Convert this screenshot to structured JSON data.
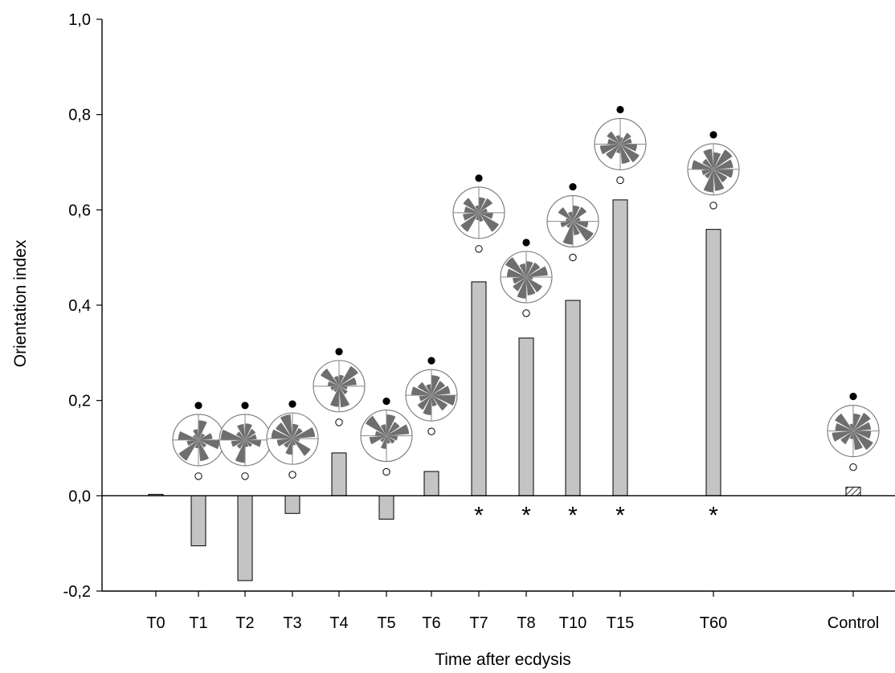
{
  "chart_data": {
    "type": "bar",
    "xlabel": "Time after ecdysis",
    "ylabel": "Orientation index",
    "ylim": [
      -0.2,
      1.0
    ],
    "yticks": [
      -0.2,
      0.0,
      0.2,
      0.4,
      0.6,
      0.8,
      1.0
    ],
    "ytick_labels": [
      "-0,2",
      "0,0",
      "0,2",
      "0,4",
      "0,6",
      "0,8",
      "1,0"
    ],
    "colors": {
      "bar": "#c4c4c4",
      "control_bar_hatch": "#000000",
      "rose": "#6e6e6e"
    },
    "significance_marker": "*",
    "categories": [
      "T0",
      "T1",
      "T2",
      "T3",
      "T4",
      "T5",
      "T6",
      "T7",
      "T8",
      "T10",
      "T15",
      "T60",
      "Control"
    ],
    "values": [
      0.003,
      -0.105,
      -0.178,
      -0.037,
      0.09,
      -0.049,
      0.051,
      0.449,
      0.331,
      0.41,
      0.621,
      0.559,
      0.018
    ],
    "significant": [
      false,
      false,
      false,
      false,
      false,
      false,
      false,
      true,
      true,
      true,
      true,
      true,
      false
    ],
    "control_bar_pattern": "hatched",
    "inset_circular_histograms": [
      {
        "category": "T1",
        "center_y": 0.117
      },
      {
        "category": "T2",
        "center_y": 0.117
      },
      {
        "category": "T3",
        "center_y": 0.12
      },
      {
        "category": "T4",
        "center_y": 0.23
      },
      {
        "category": "T5",
        "center_y": 0.126
      },
      {
        "category": "T6",
        "center_y": 0.211
      },
      {
        "category": "T7",
        "center_y": 0.594
      },
      {
        "category": "T8",
        "center_y": 0.459
      },
      {
        "category": "T10",
        "center_y": 0.576
      },
      {
        "category": "T15",
        "center_y": 0.738
      },
      {
        "category": "T60",
        "center_y": 0.685
      },
      {
        "category": "Control",
        "center_y": 0.136
      }
    ]
  }
}
